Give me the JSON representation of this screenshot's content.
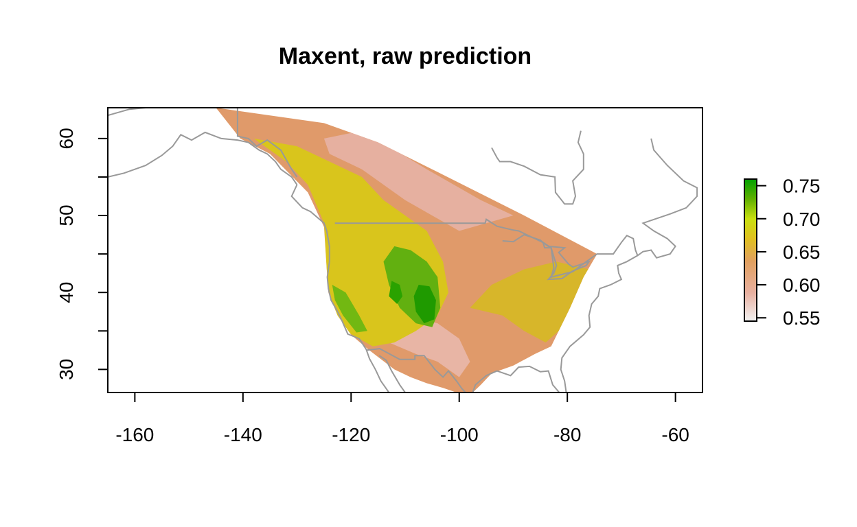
{
  "chart_data": {
    "type": "heatmap",
    "title": "Maxent, raw prediction",
    "xlabel": "",
    "ylabel": "",
    "xlim": [
      -165,
      -55
    ],
    "ylim": [
      27,
      64
    ],
    "x_ticks": [
      -160,
      -140,
      -120,
      -100,
      -80,
      -60
    ],
    "y_ticks": [
      30,
      40,
      50,
      60
    ],
    "y_minor_ticks": [
      35,
      45,
      55
    ],
    "grid": false,
    "basemap": "North America coastlines and borders (gray)",
    "legend": {
      "placement": "right",
      "type": "continuous color bar",
      "ticks": [
        0.55,
        0.6,
        0.65,
        0.7,
        0.75
      ],
      "range": [
        0.545,
        0.76
      ],
      "colors": [
        "#f2f2f2",
        "#e6a98f",
        "#e0a060",
        "#e0c020",
        "#c8e010",
        "#5cb000",
        "#00a000"
      ]
    },
    "colors": {
      "low": "#eab7aa",
      "base": "#e09a6a",
      "mid": "#e3c01e",
      "high": "#7cc20a",
      "max": "#1f9a00",
      "borders": "#999999"
    }
  }
}
